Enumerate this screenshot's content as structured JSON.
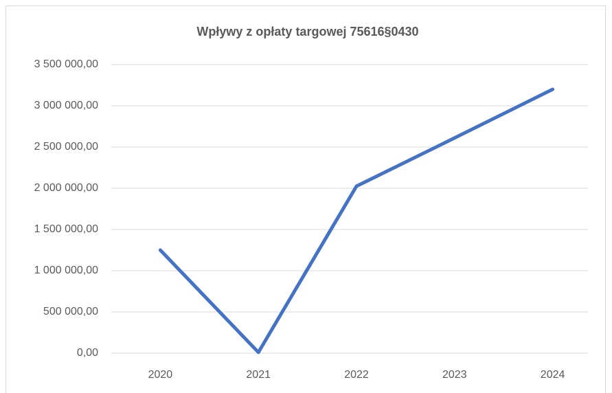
{
  "chart_data": {
    "type": "line",
    "title": "Wpływy z opłaty targowej 75616§0430",
    "categories": [
      "2020",
      "2021",
      "2022",
      "2023",
      "2024"
    ],
    "series": [
      {
        "name": null,
        "color": "#4472c4",
        "values": [
          1250000,
          10000,
          2025000,
          2610000,
          3200000
        ]
      }
    ],
    "ylim": [
      0,
      3500000
    ],
    "yticks": [
      {
        "value": 0,
        "label": "0,00"
      },
      {
        "value": 500000,
        "label": "500 000,00"
      },
      {
        "value": 1000000,
        "label": "1 000 000,00"
      },
      {
        "value": 1500000,
        "label": "1 500 000,00"
      },
      {
        "value": 2000000,
        "label": "2 000 000,00"
      },
      {
        "value": 2500000,
        "label": "2 500 000,00"
      },
      {
        "value": 3000000,
        "label": "3 000 000,00"
      },
      {
        "value": 3500000,
        "label": "3 500 000,00"
      }
    ],
    "grid": true
  }
}
